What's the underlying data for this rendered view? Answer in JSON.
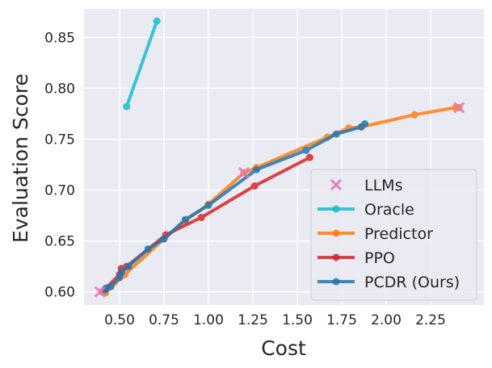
{
  "chart_data": {
    "type": "line",
    "title": "",
    "xlabel": "Cost",
    "ylabel": "Evaluation Score",
    "xlim": [
      0.3,
      2.55
    ],
    "ylim": [
      0.587,
      0.878
    ],
    "xticks": [
      0.5,
      0.75,
      1.0,
      1.25,
      1.5,
      1.75,
      2.0,
      2.25
    ],
    "xtick_labels": [
      "0.50",
      "0.75",
      "1.00",
      "1.25",
      "1.50",
      "1.75",
      "2.00",
      "2.25"
    ],
    "yticks": [
      0.6,
      0.65,
      0.7,
      0.75,
      0.8,
      0.85
    ],
    "ytick_labels": [
      "0.60",
      "0.65",
      "0.70",
      "0.75",
      "0.80",
      "0.85"
    ],
    "grid": true,
    "legend_position": "lower-right",
    "series": [
      {
        "name": "LLMs",
        "kind": "scatter",
        "color": "#e377c2",
        "marker": "x",
        "points": [
          [
            0.39,
            0.6
          ],
          [
            1.2,
            0.717
          ],
          [
            2.41,
            0.781
          ]
        ]
      },
      {
        "name": "Oracle",
        "kind": "line",
        "color": "#17becf",
        "points": [
          [
            0.54,
            0.782
          ],
          [
            0.71,
            0.866
          ]
        ]
      },
      {
        "name": "Predictor",
        "kind": "line",
        "color": "#ff7f0e",
        "points": [
          [
            0.4,
            0.6
          ],
          [
            0.42,
            0.599
          ],
          [
            0.53,
            0.617
          ],
          [
            0.75,
            0.652
          ],
          [
            0.87,
            0.67
          ],
          [
            1.0,
            0.686
          ],
          [
            1.2,
            0.717
          ],
          [
            1.27,
            0.722
          ],
          [
            1.67,
            0.752
          ],
          [
            1.79,
            0.761
          ],
          [
            1.86,
            0.762
          ],
          [
            2.16,
            0.774
          ],
          [
            2.39,
            0.781
          ],
          [
            2.41,
            0.781
          ]
        ]
      },
      {
        "name": "PPO",
        "kind": "line",
        "color": "#d62728",
        "points": [
          [
            0.42,
            0.603
          ],
          [
            0.5,
            0.617
          ],
          [
            0.51,
            0.623
          ],
          [
            0.54,
            0.625
          ],
          [
            0.76,
            0.656
          ],
          [
            0.96,
            0.673
          ],
          [
            1.26,
            0.704
          ],
          [
            1.57,
            0.732
          ]
        ]
      },
      {
        "name": "PCDR (Ours)",
        "kind": "line",
        "color": "#1f77b4",
        "points": [
          [
            0.42,
            0.602
          ],
          [
            0.43,
            0.604
          ],
          [
            0.45,
            0.605
          ],
          [
            0.5,
            0.614
          ],
          [
            0.51,
            0.619
          ],
          [
            0.55,
            0.625
          ],
          [
            0.66,
            0.642
          ],
          [
            0.75,
            0.652
          ],
          [
            0.87,
            0.671
          ],
          [
            1.0,
            0.685
          ],
          [
            1.27,
            0.72
          ],
          [
            1.55,
            0.739
          ],
          [
            1.72,
            0.755
          ],
          [
            1.86,
            0.762
          ],
          [
            1.88,
            0.765
          ]
        ]
      }
    ]
  }
}
